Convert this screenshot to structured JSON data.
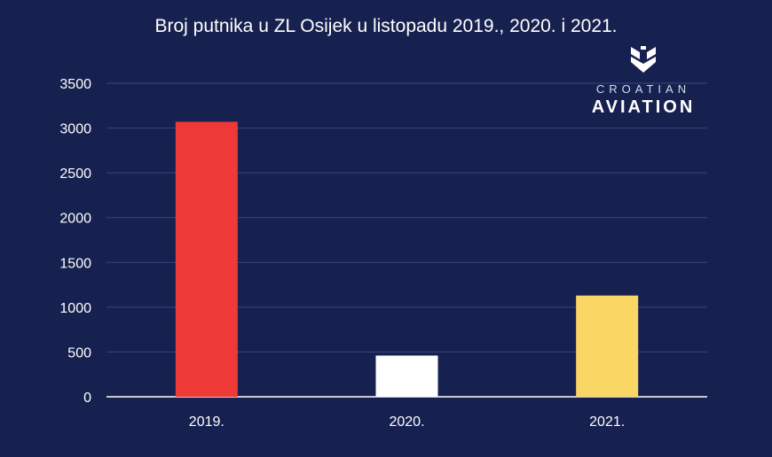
{
  "chart_data": {
    "type": "bar",
    "title": "Broj putnika u ZL Osijek u listopadu 2019., 2020. i 2021.",
    "categories": [
      "2019.",
      "2020.",
      "2021."
    ],
    "values": [
      3070,
      460,
      1130
    ],
    "colors": [
      "#ee3a36",
      "#ffffff",
      "#fad665"
    ],
    "ylim": [
      0,
      3500
    ],
    "yticks": [
      0,
      500,
      1000,
      1500,
      2000,
      2500,
      3000,
      3500
    ],
    "xlabel": "",
    "ylabel": "",
    "grid": true,
    "gridColor": "#3a4679",
    "axisColor": "#ffffff"
  },
  "logo": {
    "icon": "shield-icon",
    "line1": "CROATIAN",
    "line2": "AVIATION"
  }
}
